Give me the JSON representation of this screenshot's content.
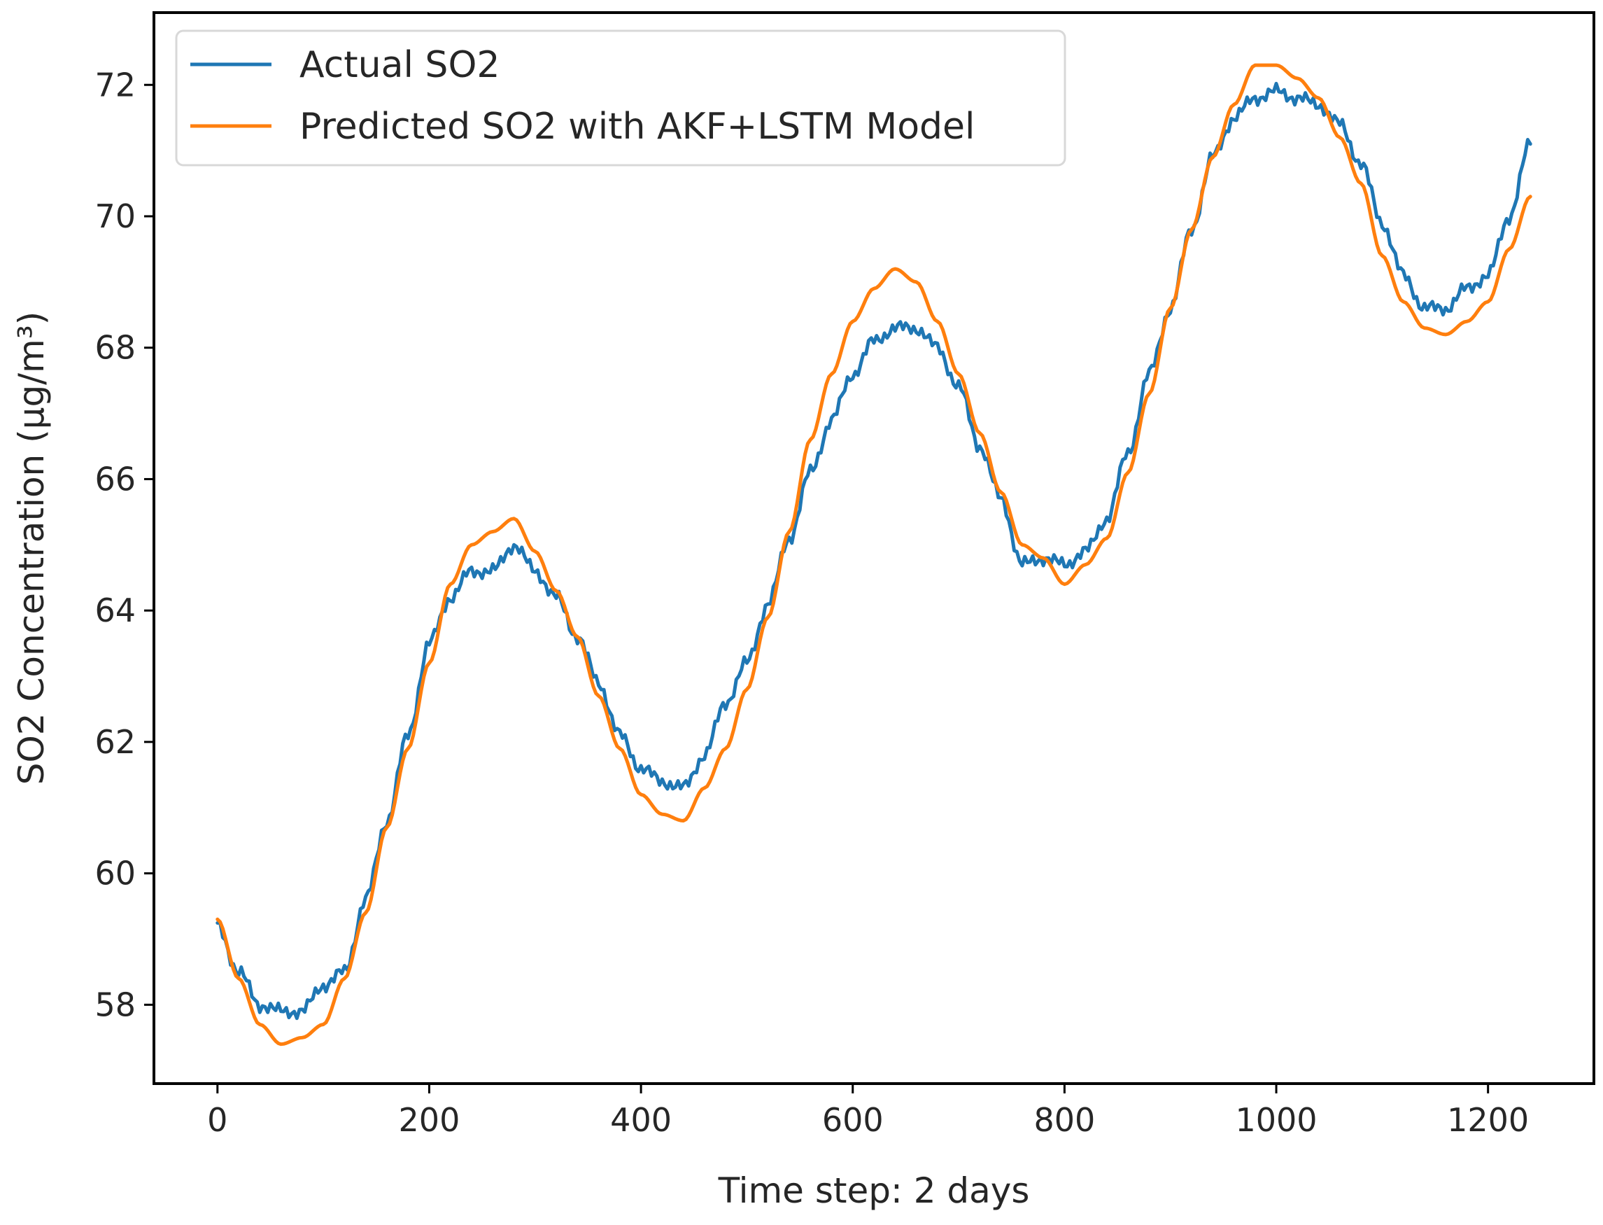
{
  "chart_data": {
    "type": "line",
    "title": "",
    "xlabel": "Time step: 2 days",
    "ylabel": "SO2 Concentration (µg/m³)",
    "xlim": [
      -60,
      1300
    ],
    "ylim": [
      56.8,
      73.1
    ],
    "xticks": [
      0,
      200,
      400,
      600,
      800,
      1000,
      1200
    ],
    "xtick_labels": [
      "0",
      "200",
      "400",
      "600",
      "800",
      "1000",
      "1200"
    ],
    "yticks": [
      58,
      60,
      62,
      64,
      66,
      68,
      70,
      72
    ],
    "ytick_labels": [
      "58",
      "60",
      "62",
      "64",
      "66",
      "68",
      "70",
      "72"
    ],
    "grid": false,
    "legend_position": "top-left",
    "series": [
      {
        "name": "Actual SO2",
        "color": "#1f77b4",
        "x": [
          0,
          20,
          40,
          60,
          80,
          100,
          120,
          140,
          160,
          180,
          200,
          220,
          240,
          260,
          280,
          300,
          320,
          340,
          360,
          380,
          400,
          420,
          440,
          460,
          480,
          500,
          520,
          540,
          560,
          580,
          600,
          620,
          640,
          660,
          680,
          700,
          720,
          740,
          760,
          780,
          800,
          820,
          840,
          860,
          880,
          900,
          920,
          940,
          960,
          980,
          1000,
          1020,
          1040,
          1060,
          1080,
          1100,
          1120,
          1140,
          1160,
          1180,
          1200,
          1220,
          1240
        ],
        "values": [
          59.2,
          58.5,
          58.0,
          57.9,
          57.9,
          58.3,
          58.5,
          59.6,
          60.8,
          62.1,
          63.5,
          64.2,
          64.6,
          64.6,
          65.0,
          64.6,
          64.2,
          63.6,
          62.9,
          62.1,
          61.6,
          61.4,
          61.3,
          61.8,
          62.6,
          63.2,
          64.1,
          65.1,
          66.1,
          66.9,
          67.6,
          68.1,
          68.3,
          68.3,
          68.0,
          67.4,
          66.5,
          65.7,
          64.7,
          64.8,
          64.7,
          64.9,
          65.4,
          66.4,
          67.6,
          68.6,
          69.8,
          70.9,
          71.5,
          71.8,
          71.9,
          71.8,
          71.7,
          71.4,
          70.8,
          69.9,
          69.1,
          68.6,
          68.6,
          68.9,
          69.1,
          70.0,
          71.1
        ]
      },
      {
        "name": "Predicted SO2 with AKF+LSTM Model",
        "color": "#ff7f0e",
        "x": [
          0,
          20,
          40,
          60,
          80,
          100,
          120,
          140,
          160,
          180,
          200,
          220,
          240,
          260,
          280,
          300,
          320,
          340,
          360,
          380,
          400,
          420,
          440,
          460,
          480,
          500,
          520,
          540,
          560,
          580,
          600,
          620,
          640,
          660,
          680,
          700,
          720,
          740,
          760,
          780,
          800,
          820,
          840,
          860,
          880,
          900,
          920,
          940,
          960,
          980,
          1000,
          1020,
          1040,
          1060,
          1080,
          1100,
          1120,
          1140,
          1160,
          1180,
          1200,
          1220,
          1240
        ],
        "values": [
          59.3,
          58.4,
          57.7,
          57.4,
          57.5,
          57.7,
          58.4,
          59.4,
          60.7,
          61.9,
          63.2,
          64.4,
          65.0,
          65.2,
          65.4,
          64.9,
          64.3,
          63.6,
          62.7,
          61.9,
          61.2,
          60.9,
          60.8,
          61.3,
          61.9,
          62.8,
          63.9,
          65.2,
          66.6,
          67.6,
          68.4,
          68.9,
          69.2,
          69.0,
          68.4,
          67.6,
          66.7,
          65.8,
          65.0,
          64.8,
          64.4,
          64.7,
          65.1,
          66.1,
          67.3,
          68.6,
          69.8,
          70.9,
          71.7,
          72.3,
          72.3,
          72.1,
          71.8,
          71.2,
          70.5,
          69.4,
          68.7,
          68.3,
          68.2,
          68.4,
          68.7,
          69.5,
          70.3
        ]
      }
    ]
  }
}
